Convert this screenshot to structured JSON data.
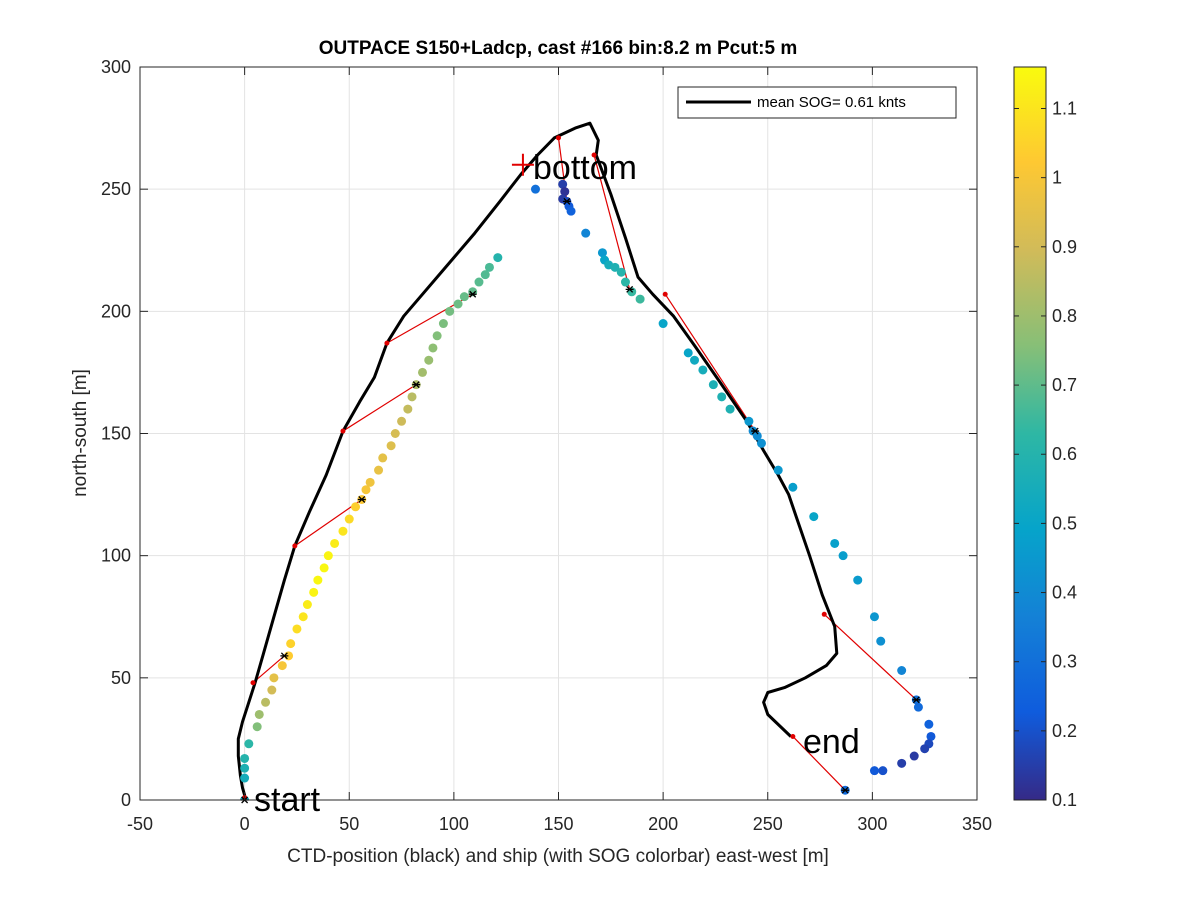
{
  "chart_data": {
    "type": "scatter",
    "title": "OUTPACE S150+Ladcp, cast #166 bin:8.2 m  Pcut:5 m",
    "xlabel": "CTD-position (black) and ship (with SOG colorbar) east-west [m]",
    "ylabel": "north-south [m]",
    "xlim": [
      -50,
      350
    ],
    "ylim": [
      0,
      300
    ],
    "xticks": [
      "-50",
      "0",
      "50",
      "100",
      "150",
      "200",
      "250",
      "300",
      "350"
    ],
    "yticks": [
      "0",
      "50",
      "100",
      "150",
      "200",
      "250",
      "300"
    ],
    "grid": true,
    "legend": {
      "position": "top-right",
      "entries": [
        "mean SOG=  0.61 knts"
      ]
    },
    "colorbar": {
      "min": 0.1,
      "max": 1.16,
      "ticks": [
        "0.1",
        "0.2",
        "0.3",
        "0.4",
        "0.5",
        "0.6",
        "0.7",
        "0.8",
        "0.9",
        "1",
        "1.1"
      ],
      "colormap": "parula"
    },
    "annotations": [
      {
        "text": "start",
        "x": 5,
        "y": 1
      },
      {
        "text": "bottom",
        "x": 139,
        "y": 255
      },
      {
        "text": "end",
        "x": 267,
        "y": 23
      }
    ],
    "bottom_marker": {
      "x": 133,
      "y": 260
    },
    "ctd_track": [
      [
        0,
        0
      ],
      [
        0,
        2
      ],
      [
        -1,
        5
      ],
      [
        -2,
        10
      ],
      [
        -3,
        18
      ],
      [
        -3,
        25
      ],
      [
        -1,
        32
      ],
      [
        2,
        40
      ],
      [
        5,
        48
      ],
      [
        9,
        60
      ],
      [
        14,
        75
      ],
      [
        19,
        90
      ],
      [
        24,
        104
      ],
      [
        31,
        118
      ],
      [
        39,
        133
      ],
      [
        47,
        151
      ],
      [
        55,
        163
      ],
      [
        62,
        173
      ],
      [
        68,
        187
      ],
      [
        76,
        198
      ],
      [
        84,
        206
      ],
      [
        96,
        218
      ],
      [
        110,
        232
      ],
      [
        122,
        245
      ],
      [
        132,
        256
      ],
      [
        140,
        264
      ],
      [
        148,
        271
      ],
      [
        153,
        273
      ],
      [
        158,
        275
      ],
      [
        165,
        277
      ],
      [
        169,
        270
      ],
      [
        168,
        264
      ],
      [
        175,
        248
      ],
      [
        182,
        230
      ],
      [
        188,
        214
      ],
      [
        195,
        207
      ],
      [
        205,
        198
      ],
      [
        215,
        186
      ],
      [
        228,
        170
      ],
      [
        240,
        155
      ],
      [
        248,
        143
      ],
      [
        255,
        133
      ],
      [
        260,
        125
      ],
      [
        264,
        115
      ],
      [
        270,
        100
      ],
      [
        276,
        84
      ],
      [
        282,
        71
      ],
      [
        283,
        60
      ],
      [
        278,
        55
      ],
      [
        268,
        50
      ],
      [
        258,
        46
      ],
      [
        250,
        44
      ],
      [
        248,
        40
      ],
      [
        250,
        35
      ],
      [
        261,
        26
      ]
    ],
    "ship_points": [
      {
        "x": 0,
        "y": 0,
        "sog": 0.52
      },
      {
        "x": 0,
        "y": 9,
        "sog": 0.55
      },
      {
        "x": 0,
        "y": 13,
        "sog": 0.58
      },
      {
        "x": 0,
        "y": 17,
        "sog": 0.6
      },
      {
        "x": 2,
        "y": 23,
        "sog": 0.62
      },
      {
        "x": 6,
        "y": 30,
        "sog": 0.75
      },
      {
        "x": 7,
        "y": 35,
        "sog": 0.8
      },
      {
        "x": 10,
        "y": 40,
        "sog": 0.85
      },
      {
        "x": 13,
        "y": 45,
        "sog": 0.9
      },
      {
        "x": 14,
        "y": 50,
        "sog": 0.95
      },
      {
        "x": 18,
        "y": 55,
        "sog": 1.0
      },
      {
        "x": 21,
        "y": 59,
        "sog": 1.03
      },
      {
        "x": 22,
        "y": 64,
        "sog": 1.05
      },
      {
        "x": 25,
        "y": 70,
        "sog": 1.08
      },
      {
        "x": 28,
        "y": 75,
        "sog": 1.1
      },
      {
        "x": 30,
        "y": 80,
        "sog": 1.12
      },
      {
        "x": 33,
        "y": 85,
        "sog": 1.14
      },
      {
        "x": 35,
        "y": 90,
        "sog": 1.15
      },
      {
        "x": 38,
        "y": 95,
        "sog": 1.15
      },
      {
        "x": 40,
        "y": 100,
        "sog": 1.14
      },
      {
        "x": 43,
        "y": 105,
        "sog": 1.12
      },
      {
        "x": 47,
        "y": 110,
        "sog": 1.1
      },
      {
        "x": 50,
        "y": 115,
        "sog": 1.07
      },
      {
        "x": 53,
        "y": 120,
        "sog": 1.04
      },
      {
        "x": 56,
        "y": 123,
        "sog": 1.02
      },
      {
        "x": 58,
        "y": 127,
        "sog": 1.0
      },
      {
        "x": 60,
        "y": 130,
        "sog": 0.98
      },
      {
        "x": 64,
        "y": 135,
        "sog": 0.96
      },
      {
        "x": 66,
        "y": 140,
        "sog": 0.95
      },
      {
        "x": 70,
        "y": 145,
        "sog": 0.93
      },
      {
        "x": 72,
        "y": 150,
        "sog": 0.91
      },
      {
        "x": 75,
        "y": 155,
        "sog": 0.89
      },
      {
        "x": 78,
        "y": 160,
        "sog": 0.87
      },
      {
        "x": 80,
        "y": 165,
        "sog": 0.85
      },
      {
        "x": 82,
        "y": 170,
        "sog": 0.83
      },
      {
        "x": 85,
        "y": 175,
        "sog": 0.81
      },
      {
        "x": 88,
        "y": 180,
        "sog": 0.79
      },
      {
        "x": 90,
        "y": 185,
        "sog": 0.77
      },
      {
        "x": 92,
        "y": 190,
        "sog": 0.75
      },
      {
        "x": 95,
        "y": 195,
        "sog": 0.74
      },
      {
        "x": 98,
        "y": 200,
        "sog": 0.73
      },
      {
        "x": 102,
        "y": 203,
        "sog": 0.72
      },
      {
        "x": 105,
        "y": 206,
        "sog": 0.71
      },
      {
        "x": 109,
        "y": 208,
        "sog": 0.7
      },
      {
        "x": 112,
        "y": 212,
        "sog": 0.69
      },
      {
        "x": 115,
        "y": 215,
        "sog": 0.68
      },
      {
        "x": 117,
        "y": 218,
        "sog": 0.67
      },
      {
        "x": 121,
        "y": 222,
        "sog": 0.6
      },
      {
        "x": 139,
        "y": 250,
        "sog": 0.3
      },
      {
        "x": 152,
        "y": 252,
        "sog": 0.15
      },
      {
        "x": 153,
        "y": 249,
        "sog": 0.12
      },
      {
        "x": 152,
        "y": 246,
        "sog": 0.14
      },
      {
        "x": 154,
        "y": 245,
        "sog": 0.18
      },
      {
        "x": 155,
        "y": 243,
        "sog": 0.22
      },
      {
        "x": 156,
        "y": 241,
        "sog": 0.25
      },
      {
        "x": 163,
        "y": 232,
        "sog": 0.38
      },
      {
        "x": 171,
        "y": 224,
        "sog": 0.45
      },
      {
        "x": 172,
        "y": 221,
        "sog": 0.5
      },
      {
        "x": 174,
        "y": 219,
        "sog": 0.55
      },
      {
        "x": 177,
        "y": 218,
        "sog": 0.58
      },
      {
        "x": 180,
        "y": 216,
        "sog": 0.6
      },
      {
        "x": 182,
        "y": 212,
        "sog": 0.62
      },
      {
        "x": 185,
        "y": 208,
        "sog": 0.64
      },
      {
        "x": 189,
        "y": 205,
        "sog": 0.65
      },
      {
        "x": 200,
        "y": 195,
        "sog": 0.5
      },
      {
        "x": 212,
        "y": 183,
        "sog": 0.5
      },
      {
        "x": 215,
        "y": 180,
        "sog": 0.53
      },
      {
        "x": 219,
        "y": 176,
        "sog": 0.55
      },
      {
        "x": 224,
        "y": 170,
        "sog": 0.57
      },
      {
        "x": 228,
        "y": 165,
        "sog": 0.58
      },
      {
        "x": 232,
        "y": 160,
        "sog": 0.58
      },
      {
        "x": 241,
        "y": 155,
        "sog": 0.45
      },
      {
        "x": 243,
        "y": 151,
        "sog": 0.4
      },
      {
        "x": 245,
        "y": 149,
        "sog": 0.4
      },
      {
        "x": 247,
        "y": 146,
        "sog": 0.42
      },
      {
        "x": 255,
        "y": 135,
        "sog": 0.45
      },
      {
        "x": 262,
        "y": 128,
        "sog": 0.47
      },
      {
        "x": 272,
        "y": 116,
        "sog": 0.5
      },
      {
        "x": 282,
        "y": 105,
        "sog": 0.48
      },
      {
        "x": 286,
        "y": 100,
        "sog": 0.47
      },
      {
        "x": 293,
        "y": 90,
        "sog": 0.46
      },
      {
        "x": 301,
        "y": 75,
        "sog": 0.44
      },
      {
        "x": 304,
        "y": 65,
        "sog": 0.42
      },
      {
        "x": 314,
        "y": 53,
        "sog": 0.38
      },
      {
        "x": 321,
        "y": 41,
        "sog": 0.3
      },
      {
        "x": 322,
        "y": 38,
        "sog": 0.28
      },
      {
        "x": 327,
        "y": 31,
        "sog": 0.25
      },
      {
        "x": 328,
        "y": 26,
        "sog": 0.22
      },
      {
        "x": 327,
        "y": 23,
        "sog": 0.18
      },
      {
        "x": 325,
        "y": 21,
        "sog": 0.16
      },
      {
        "x": 320,
        "y": 18,
        "sog": 0.14
      },
      {
        "x": 314,
        "y": 15,
        "sog": 0.15
      },
      {
        "x": 305,
        "y": 12,
        "sog": 0.2
      },
      {
        "x": 301,
        "y": 12,
        "sog": 0.22
      },
      {
        "x": 287,
        "y": 4,
        "sog": 0.28
      }
    ],
    "connectors": [
      {
        "ctd": [
          0,
          1
        ],
        "ship": [
          0,
          0
        ]
      },
      {
        "ctd": [
          4,
          48
        ],
        "ship": [
          19,
          59
        ]
      },
      {
        "ctd": [
          24,
          104
        ],
        "ship": [
          56,
          123
        ]
      },
      {
        "ctd": [
          47,
          151
        ],
        "ship": [
          82,
          170
        ]
      },
      {
        "ctd": [
          68,
          187
        ],
        "ship": [
          109,
          207
        ]
      },
      {
        "ctd": [
          150,
          271
        ],
        "ship": [
          154,
          245
        ]
      },
      {
        "ctd": [
          167,
          264
        ],
        "ship": [
          184,
          209
        ]
      },
      {
        "ctd": [
          201,
          207
        ],
        "ship": [
          244,
          151
        ]
      },
      {
        "ctd": [
          277,
          76
        ],
        "ship": [
          321,
          41
        ]
      },
      {
        "ctd": [
          262,
          26
        ],
        "ship": [
          287,
          4
        ]
      }
    ]
  }
}
